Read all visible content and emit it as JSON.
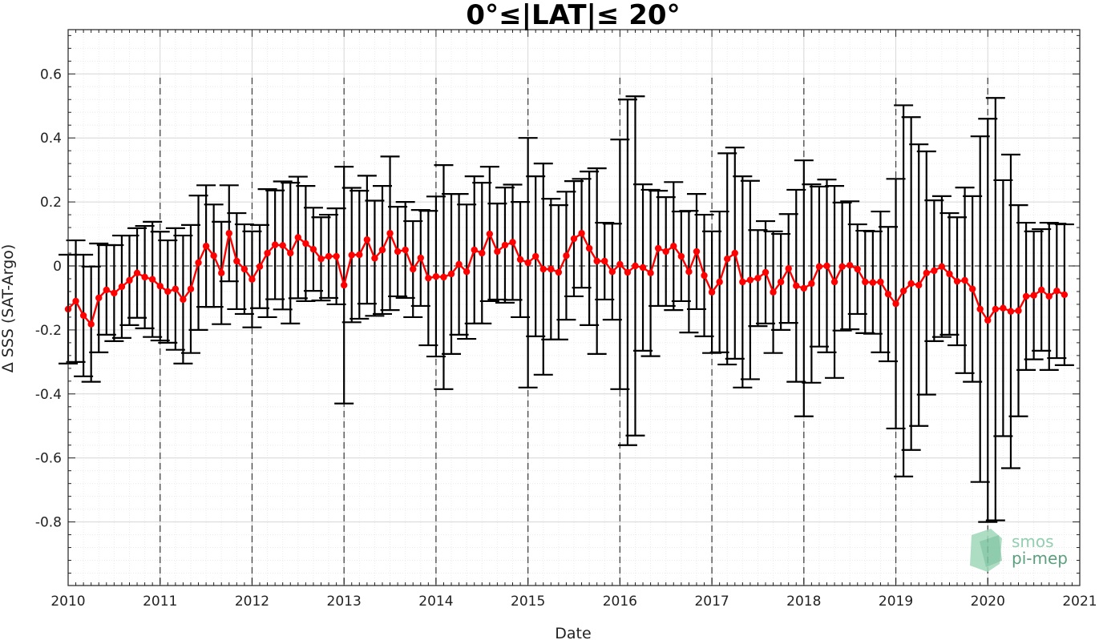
{
  "chart_data": {
    "type": "line",
    "title": "0°≤|LAT|≤ 20°",
    "xlabel": "Date",
    "ylabel": "Δ SSS (SAT-Argo)",
    "xlim": [
      "2010-01",
      "2021-01"
    ],
    "ylim": [
      -1.0,
      0.73
    ],
    "x_ticks": [
      "2010",
      "2011",
      "2012",
      "2013",
      "2014",
      "2015",
      "2016",
      "2017",
      "2018",
      "2019",
      "2020",
      "2021"
    ],
    "y_ticks": [
      "0.6",
      "0.4",
      "0.2",
      "0",
      "-0.2",
      "-0.4",
      "-0.6",
      "-0.8"
    ],
    "y_tick_values": [
      0.6,
      0.4,
      0.2,
      0,
      -0.2,
      -0.4,
      -0.6,
      -0.8
    ],
    "grid": true,
    "minor_grid": true,
    "year_separators": "dashed",
    "zero_line": "dashed",
    "series": [
      {
        "color": "#ff0000",
        "errorbar_color": "#000000",
        "start": "2010-01",
        "step": "monthly",
        "values": [
          -0.135,
          -0.11,
          -0.155,
          -0.182,
          -0.1,
          -0.075,
          -0.085,
          -0.065,
          -0.045,
          -0.022,
          -0.035,
          -0.042,
          -0.063,
          -0.08,
          -0.072,
          -0.105,
          -0.072,
          0.01,
          0.062,
          0.032,
          -0.022,
          0.102,
          0.015,
          -0.01,
          -0.042,
          -0.002,
          0.04,
          0.066,
          0.064,
          0.04,
          0.089,
          0.07,
          0.052,
          0.022,
          0.03,
          0.03,
          -0.06,
          0.034,
          0.035,
          0.082,
          0.024,
          0.05,
          0.102,
          0.045,
          0.05,
          -0.01,
          0.025,
          -0.038,
          -0.033,
          -0.035,
          -0.025,
          0.005,
          -0.018,
          0.05,
          0.04,
          0.1,
          0.045,
          0.065,
          0.074,
          0.02,
          0.01,
          0.03,
          -0.01,
          -0.01,
          -0.02,
          0.032,
          0.085,
          0.102,
          0.055,
          0.015,
          0.015,
          -0.018,
          0.005,
          -0.02,
          0.0,
          -0.005,
          -0.022,
          0.055,
          0.045,
          0.062,
          0.03,
          -0.018,
          0.045,
          -0.03,
          -0.082,
          -0.05,
          0.022,
          0.04,
          -0.05,
          -0.044,
          -0.038,
          -0.02,
          -0.082,
          -0.05,
          -0.008,
          -0.062,
          -0.07,
          -0.055,
          -0.002,
          0.0,
          -0.05,
          -0.002,
          0.002,
          -0.01,
          -0.05,
          -0.052,
          -0.05,
          -0.088,
          -0.118,
          -0.078,
          -0.055,
          -0.06,
          -0.022,
          -0.015,
          -0.002,
          -0.025,
          -0.048,
          -0.045,
          -0.072,
          -0.135,
          -0.17,
          -0.135,
          -0.132,
          -0.142,
          -0.14,
          -0.095,
          -0.092,
          -0.075,
          -0.095,
          -0.078,
          -0.09
        ],
        "errors": [
          0.17,
          0.19,
          0.19,
          0.18,
          0.17,
          0.14,
          0.15,
          0.16,
          0.14,
          0.14,
          0.16,
          0.18,
          0.17,
          0.16,
          0.19,
          0.2,
          0.2,
          0.21,
          0.19,
          0.16,
          0.16,
          0.15,
          0.15,
          0.14,
          0.15,
          0.13,
          0.2,
          0.17,
          0.2,
          0.22,
          0.19,
          0.18,
          0.13,
          0.13,
          0.13,
          0.15,
          0.37,
          0.21,
          0.2,
          0.2,
          0.18,
          0.2,
          0.24,
          0.14,
          0.15,
          0.15,
          0.15,
          0.21,
          0.25,
          0.35,
          0.25,
          0.22,
          0.21,
          0.23,
          0.22,
          0.21,
          0.15,
          0.18,
          0.18,
          0.18,
          0.39,
          0.25,
          0.33,
          0.22,
          0.21,
          0.2,
          0.18,
          0.17,
          0.24,
          0.29,
          0.12,
          0.15,
          0.39,
          0.54,
          0.53,
          0.26,
          0.26,
          0.18,
          0.17,
          0.2,
          0.14,
          0.19,
          0.18,
          0.19,
          0.19,
          0.22,
          0.33,
          0.33,
          0.33,
          0.31,
          0.15,
          0.16,
          0.19,
          0.15,
          0.17,
          0.3,
          0.4,
          0.31,
          0.25,
          0.27,
          0.3,
          0.2,
          0.2,
          0.14,
          0.16,
          0.16,
          0.22,
          0.21,
          0.39,
          0.58,
          0.52,
          0.44,
          0.38,
          0.22,
          0.22,
          0.19,
          0.2,
          0.29,
          0.29,
          0.54,
          0.63,
          0.66,
          0.4,
          0.49,
          0.33,
          0.23,
          0.2,
          0.19,
          0.23,
          0.21,
          0.22
        ],
        "annotations": []
      }
    ]
  }
}
